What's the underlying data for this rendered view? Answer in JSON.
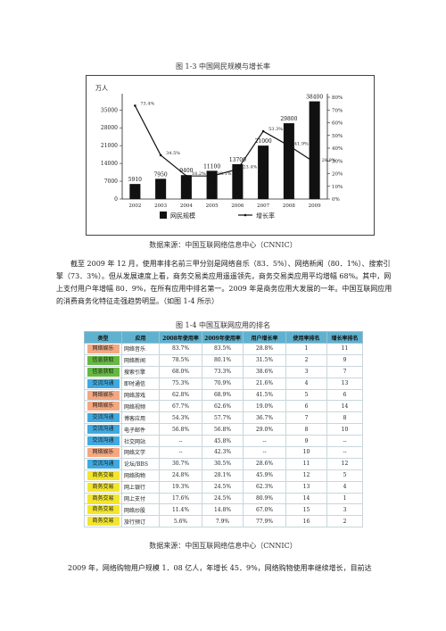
{
  "figure": {
    "title": "图 1-3    中国网民规模与增长率",
    "source": "数据来源：中国互联网络信息中心（CNNIC）"
  },
  "chart_data": {
    "type": "bar",
    "categories": [
      "2002",
      "2003",
      "2004",
      "2005",
      "2006",
      "2007",
      "2008",
      "2009"
    ],
    "series": [
      {
        "name": "网民规模",
        "type": "bar",
        "values": [
          5910,
          7950,
          9400,
          11100,
          13700,
          21000,
          29800,
          38400
        ]
      },
      {
        "name": "增长率",
        "type": "line",
        "values": [
          73.4,
          34.5,
          18.2,
          18.1,
          23.4,
          53.3,
          41.9,
          28.9
        ]
      }
    ],
    "value_labels": [
      "5910",
      "7950",
      "9400",
      "11100",
      "13700",
      "21000",
      "29800",
      "38400"
    ],
    "rate_labels": [
      "73.4%",
      "34.5%",
      "18.2%",
      "18.1%",
      "23.4%",
      "53.3%",
      "41.9%",
      "28.9%"
    ],
    "ylabel": "万人",
    "y_ticks": [
      "0",
      "7000",
      "14000",
      "21000",
      "28000",
      "35000"
    ],
    "ylim": [
      0,
      40000
    ],
    "y2_ticks": [
      "0%",
      "10%",
      "20%",
      "30%",
      "40%",
      "50%",
      "60%",
      "70%",
      "80%"
    ],
    "y2lim": [
      0,
      80
    ],
    "legend_position": "bottom",
    "colors": {
      "bar": "#111111",
      "line": "#111111"
    }
  },
  "paragraph1": "截至 2009 年 12 月，使用率排名前三甲分别是网络音乐（83．5%）、网络新闻（80．1%）、搜索引擎（73．3%）。但从发展速度上看，商务交易类应用遥遥领先，商务交易类应用平均增幅 68%。其中，网上支付用户年增幅 80．9%，在所有应用中排名第一。2009 年是商务应用大发展的一年。中国互联网应用的消费商务化特征走强趋势明显。（如图 1-4 所示）",
  "table": {
    "title": "图 1-4    中国互联网应用的排名",
    "headers": [
      "类型",
      "应用",
      "2008年使用率",
      "2009年使用率",
      "用户增长率",
      "使用率排名",
      "增长率排名"
    ],
    "rows": [
      {
        "cat": "网络娱乐",
        "color": "#f4a882",
        "cells": [
          "网络音乐",
          "83.7%",
          "83.5%",
          "28.8%",
          "1",
          "11"
        ]
      },
      {
        "cat": "信息获取",
        "color": "#66b843",
        "cells": [
          "网络新闻",
          "78.5%",
          "80.1%",
          "31.5%",
          "2",
          "9"
        ]
      },
      {
        "cat": "信息获取",
        "color": "#66b843",
        "cells": [
          "搜索引擎",
          "68.0%",
          "73.3%",
          "38.6%",
          "3",
          "7"
        ]
      },
      {
        "cat": "交流沟通",
        "color": "#3fa9e0",
        "cells": [
          "即时通信",
          "75.3%",
          "70.9%",
          "21.6%",
          "4",
          "13"
        ]
      },
      {
        "cat": "网络娱乐",
        "color": "#f4a882",
        "cells": [
          "网络游戏",
          "62.8%",
          "68.9%",
          "41.5%",
          "5",
          "6"
        ]
      },
      {
        "cat": "网络娱乐",
        "color": "#f4a882",
        "cells": [
          "网络视频",
          "67.7%",
          "62.6%",
          "19.0%",
          "6",
          "14"
        ]
      },
      {
        "cat": "交流沟通",
        "color": "#3fa9e0",
        "cells": [
          "博客应用",
          "54.3%",
          "57.7%",
          "36.7%",
          "7",
          "8"
        ]
      },
      {
        "cat": "交流沟通",
        "color": "#3fa9e0",
        "cells": [
          "电子邮件",
          "56.8%",
          "56.8%",
          "29.0%",
          "8",
          "10"
        ]
      },
      {
        "cat": "交流沟通",
        "color": "#3fa9e0",
        "cells": [
          "社交网站",
          "--",
          "45.8%",
          "--",
          "9",
          "--"
        ]
      },
      {
        "cat": "网络娱乐",
        "color": "#f4a882",
        "cells": [
          "网络文学",
          "--",
          "42.3%",
          "--",
          "10",
          "--"
        ]
      },
      {
        "cat": "交流沟通",
        "color": "#3fa9e0",
        "cells": [
          "论坛/BBS",
          "30.7%",
          "30.5%",
          "28.6%",
          "11",
          "12"
        ]
      },
      {
        "cat": "商务交易",
        "color": "#f2e52c",
        "cells": [
          "网络购物",
          "24.8%",
          "28.1%",
          "45.9%",
          "12",
          "5"
        ]
      },
      {
        "cat": "商务交易",
        "color": "#f2e52c",
        "cells": [
          "网上银行",
          "19.3%",
          "24.5%",
          "62.3%",
          "13",
          "4"
        ]
      },
      {
        "cat": "商务交易",
        "color": "#f2e52c",
        "cells": [
          "网上支付",
          "17.6%",
          "24.5%",
          "80.9%",
          "14",
          "1"
        ]
      },
      {
        "cat": "商务交易",
        "color": "#f2e52c",
        "cells": [
          "网络炒股",
          "11.4%",
          "14.8%",
          "67.0%",
          "15",
          "3"
        ]
      },
      {
        "cat": "商务交易",
        "color": "#f2e52c",
        "cells": [
          "旅行预订",
          "5.6%",
          "7.9%",
          "77.9%",
          "16",
          "2"
        ]
      }
    ],
    "source": "数据来源：中国互联网络信息中心（CNNIC）"
  },
  "paragraph2": "2009 年，网络购物用户规模 1．08 亿人，年增长 45．9%，网络购物使用率继续增长，目前达"
}
